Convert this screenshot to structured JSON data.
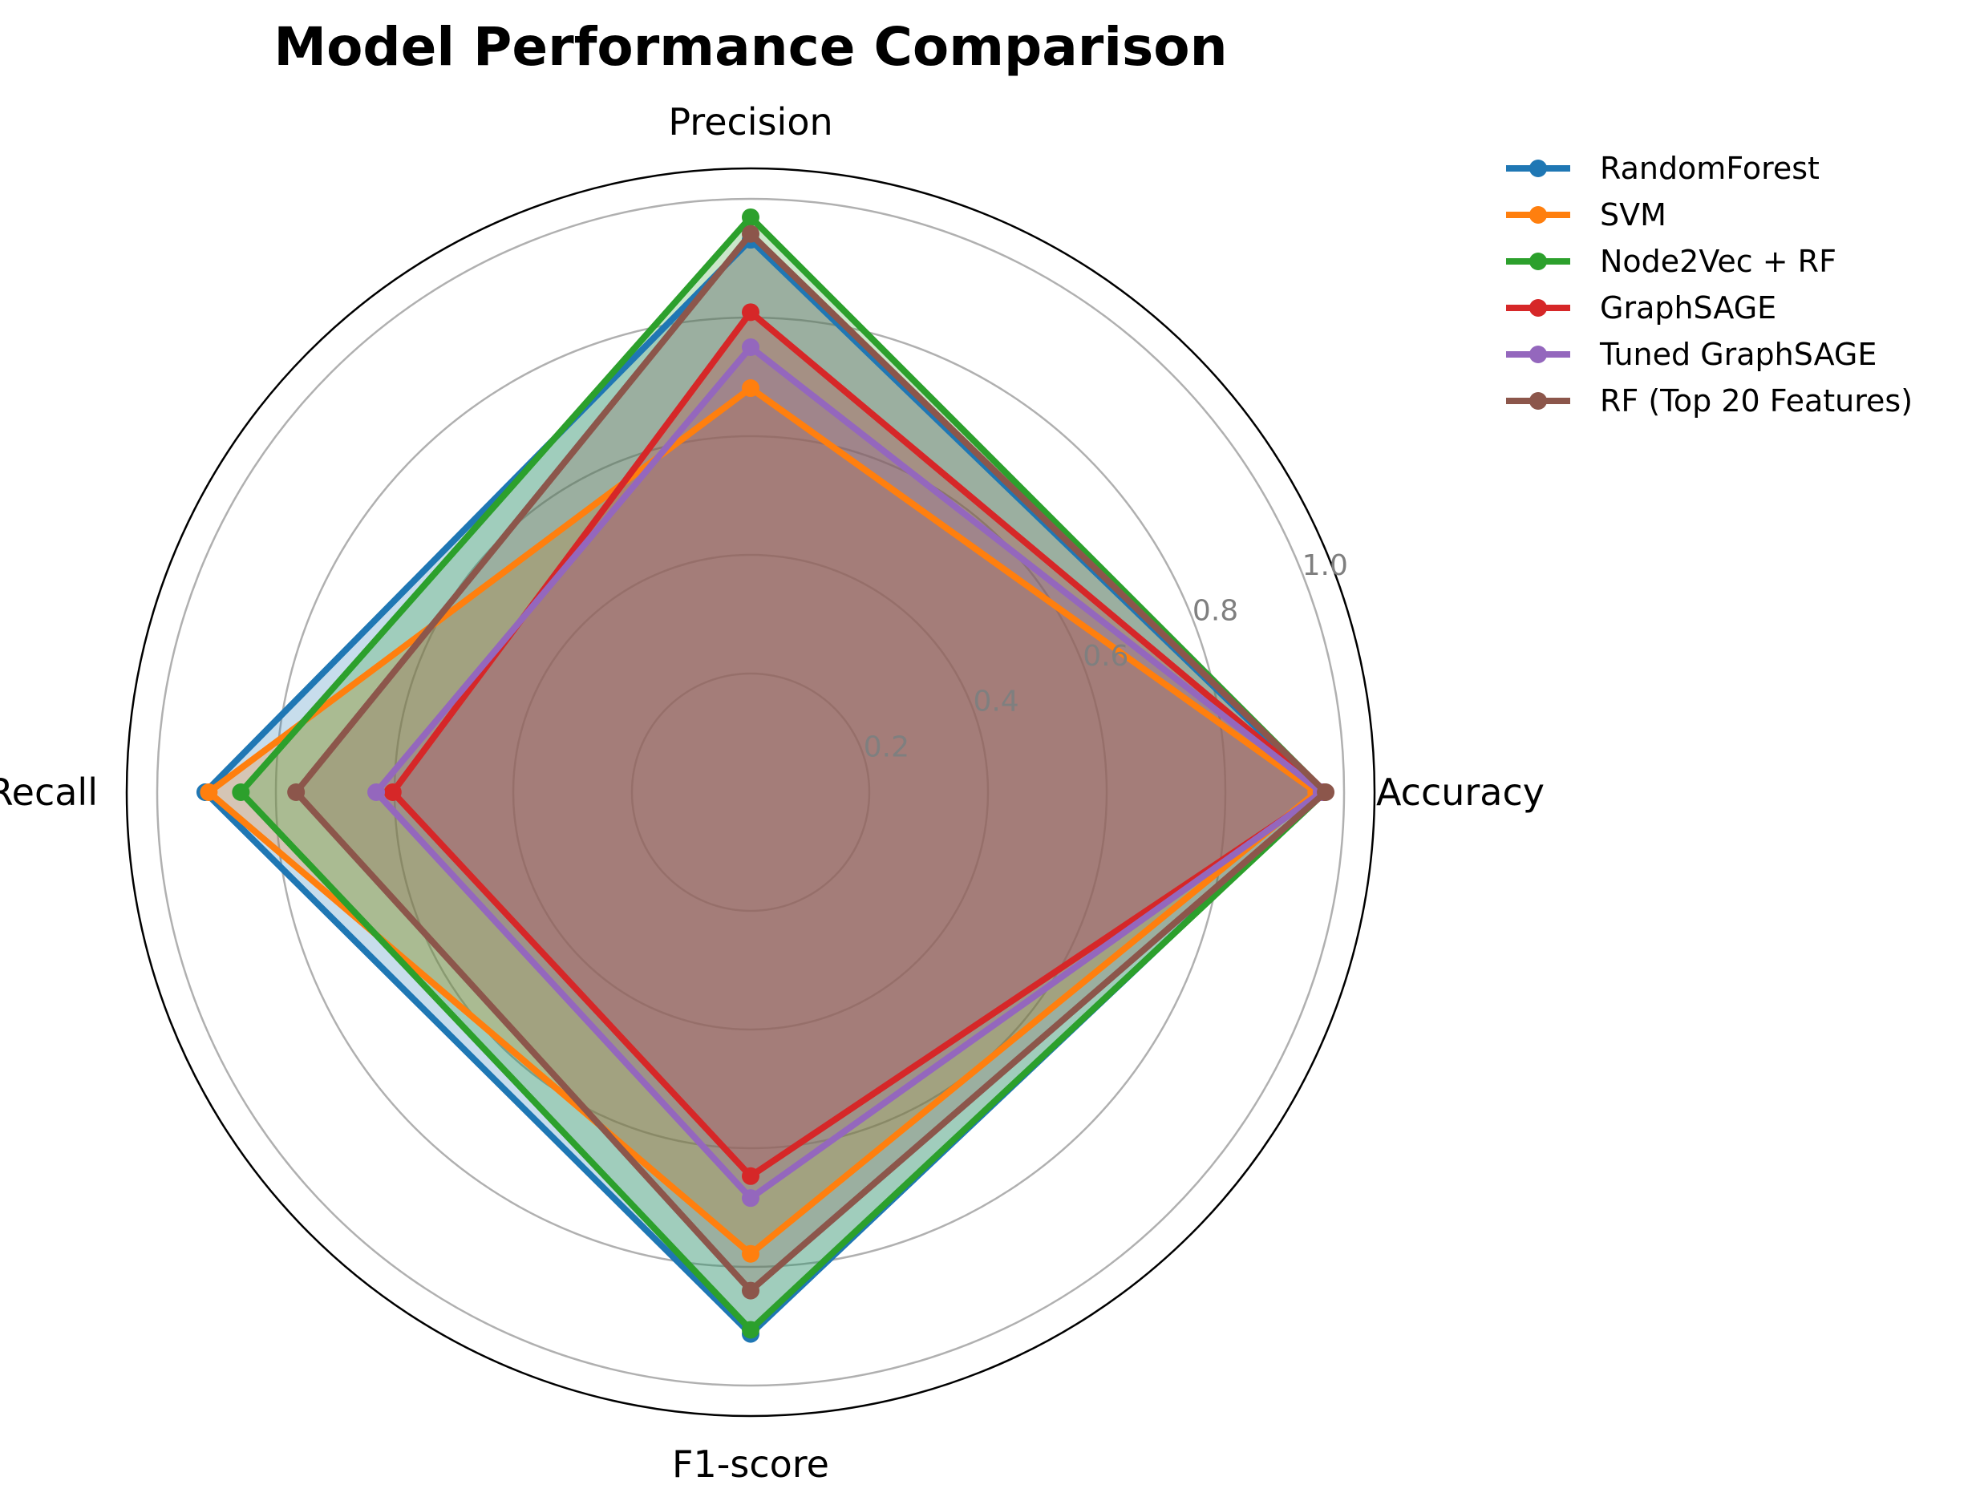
{
  "chart_data": {
    "type": "radar",
    "title": "Model Performance Comparison",
    "axes": [
      "Accuracy",
      "Precision",
      "Recall",
      "F1-score"
    ],
    "rlim": [
      0,
      1.0
    ],
    "rticks": [
      0.2,
      0.4,
      0.6,
      0.8,
      1.0
    ],
    "rtick_labels": [
      "0.2",
      "0.4",
      "0.6",
      "0.8",
      "1.0"
    ],
    "grid": true,
    "legend_position": "top-right, outside plot",
    "series": [
      {
        "name": "RandomForest",
        "color": "#1f77b4",
        "values": [
          0.965,
          0.931,
          0.919,
          0.913
        ]
      },
      {
        "name": "SVM",
        "color": "#ff7f0e",
        "values": [
          0.953,
          0.681,
          0.913,
          0.778
        ]
      },
      {
        "name": "Node2Vec + RF",
        "color": "#2ca02c",
        "values": [
          0.968,
          0.969,
          0.859,
          0.906
        ]
      },
      {
        "name": "GraphSAGE",
        "color": "#d62728",
        "values": [
          0.965,
          0.809,
          0.603,
          0.647
        ]
      },
      {
        "name": "Tuned GraphSAGE",
        "color": "#9467bd",
        "values": [
          0.962,
          0.75,
          0.631,
          0.684
        ]
      },
      {
        "name": "RF (Top 20 Features)",
        "color": "#8c564b",
        "values": [
          0.969,
          0.941,
          0.766,
          0.84
        ]
      }
    ]
  }
}
